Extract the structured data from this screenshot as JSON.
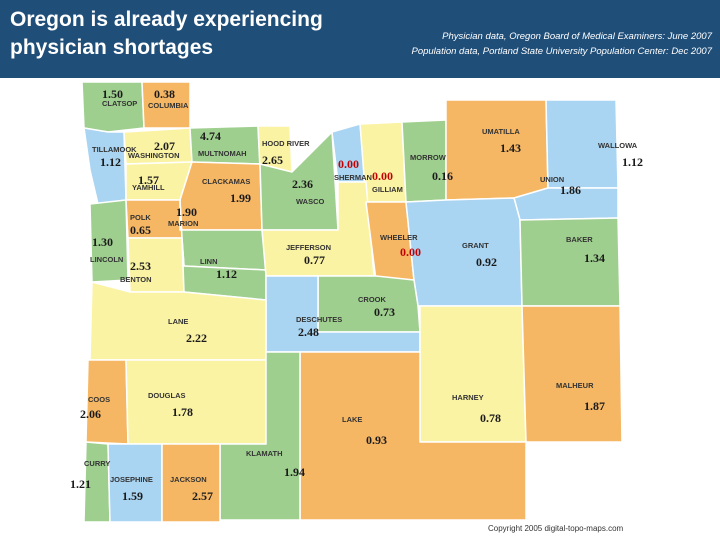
{
  "title": "Oregon is already experiencing physician shortages",
  "source_lines": [
    "Physician data, Oregon Board of Medical Examiners: June 2007",
    "Population data, Portland State University Population Center: Dec 2007"
  ],
  "copyright": "Copyright 2005 digital-topo-maps.com",
  "colors": {
    "header": "#1f4e79",
    "blue": "#a9d4f2",
    "green": "#9fcf8f",
    "orange": "#f6b764",
    "yellow": "#fbf3a4",
    "red_value": "#c00000"
  },
  "counties": [
    {
      "name": "CLATSOP",
      "value": "1.50"
    },
    {
      "name": "COLUMBIA",
      "value": "0.38"
    },
    {
      "name": "TILLAMOOK",
      "value": "1.12"
    },
    {
      "name": "WASHINGTON",
      "value": "2.07"
    },
    {
      "name": "MULTNOMAH",
      "value": "4.74"
    },
    {
      "name": "HOOD RIVER",
      "value": "2.65"
    },
    {
      "name": "YAMHILL",
      "value": "1.57"
    },
    {
      "name": "CLACKAMAS",
      "value": "1.99"
    },
    {
      "name": "WASCO",
      "value": "2.36"
    },
    {
      "name": "SHERMAN",
      "value": "0.00"
    },
    {
      "name": "GILLIAM",
      "value": "0.00"
    },
    {
      "name": "MORROW",
      "value": "0.16"
    },
    {
      "name": "UMATILLA",
      "value": "1.43"
    },
    {
      "name": "UNION",
      "value": "1.86"
    },
    {
      "name": "WALLOWA",
      "value": "1.12"
    },
    {
      "name": "POLK",
      "value": "0.65"
    },
    {
      "name": "MARION",
      "value": "1.90"
    },
    {
      "name": "LINCOLN",
      "value": "1.30"
    },
    {
      "name": "BENTON",
      "value": "2.53"
    },
    {
      "name": "LINN",
      "value": "1.12"
    },
    {
      "name": "JEFFERSON",
      "value": "0.77"
    },
    {
      "name": "WHEELER",
      "value": "0.00"
    },
    {
      "name": "GRANT",
      "value": "0.92"
    },
    {
      "name": "BAKER",
      "value": "1.34"
    },
    {
      "name": "CROOK",
      "value": "0.73"
    },
    {
      "name": "DESCHUTES",
      "value": "2.48"
    },
    {
      "name": "LANE",
      "value": "2.22"
    },
    {
      "name": "COOS",
      "value": "2.06"
    },
    {
      "name": "DOUGLAS",
      "value": "1.78"
    },
    {
      "name": "LAKE",
      "value": "0.93"
    },
    {
      "name": "HARNEY",
      "value": "0.78"
    },
    {
      "name": "MALHEUR",
      "value": "1.87"
    },
    {
      "name": "CURRY",
      "value": "1.21"
    },
    {
      "name": "JOSEPHINE",
      "value": "1.59"
    },
    {
      "name": "JACKSON",
      "value": "2.57"
    },
    {
      "name": "KLAMATH",
      "value": "1.94"
    }
  ]
}
